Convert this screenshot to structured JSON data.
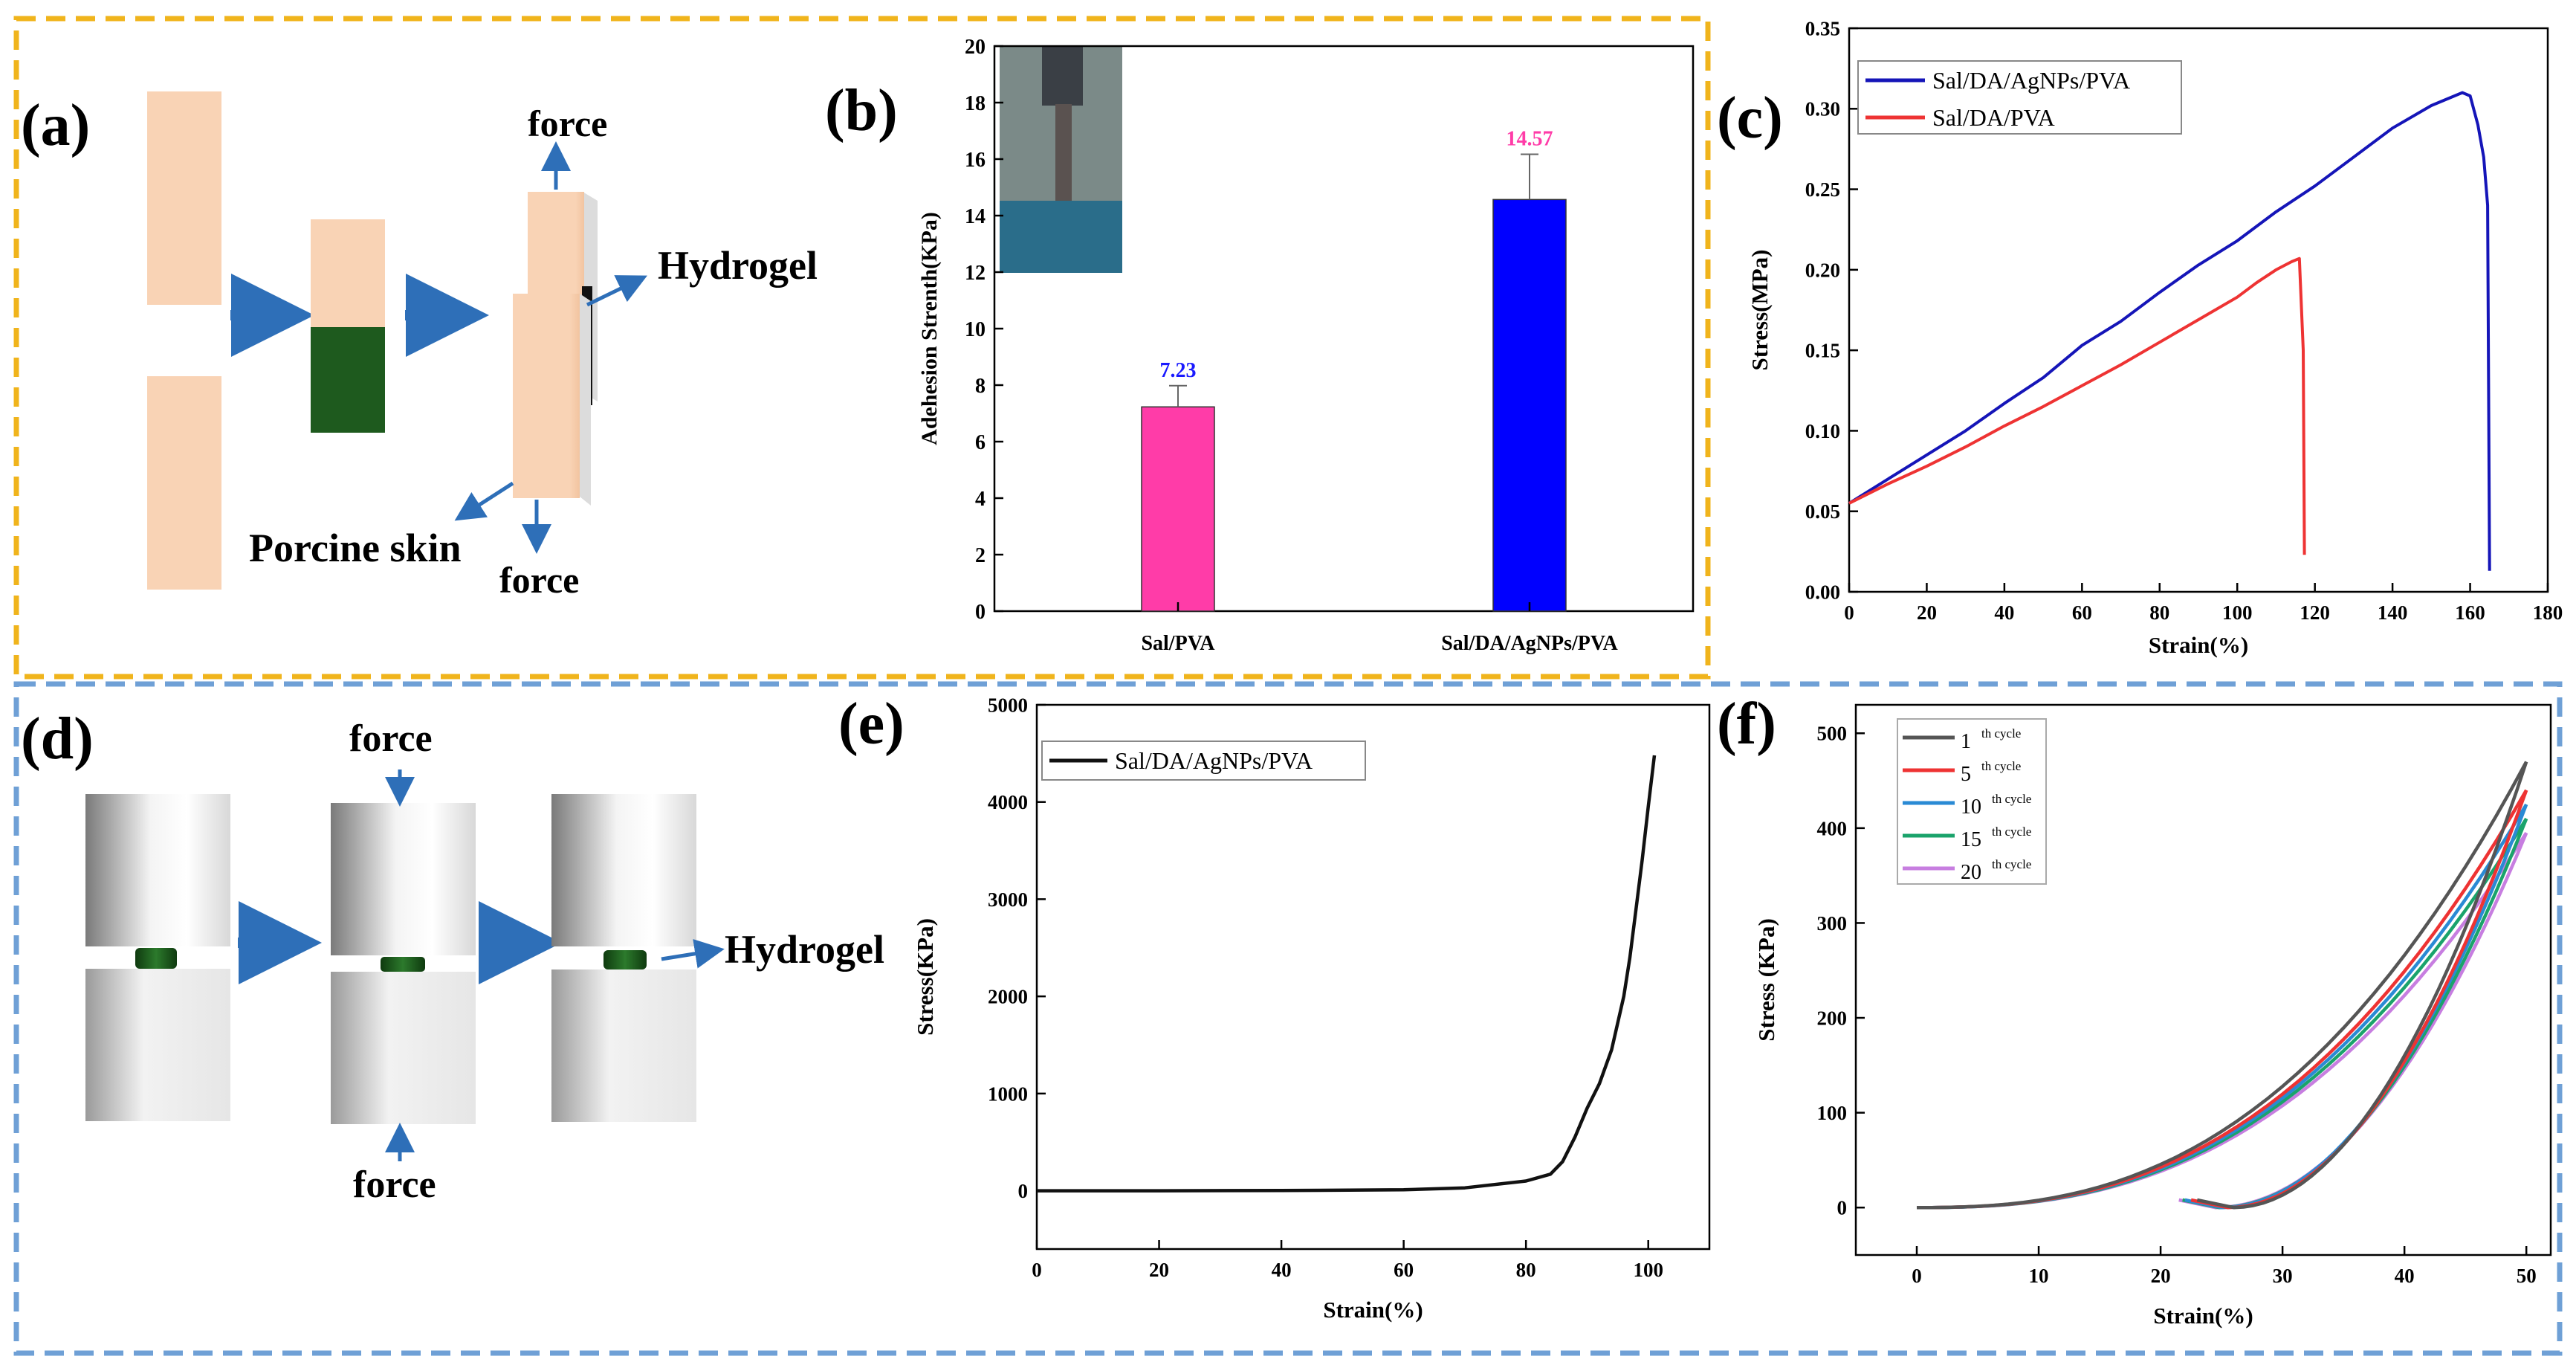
{
  "panels": {
    "a": {
      "label": "(a)",
      "force_top": "force",
      "force_bottom": "force",
      "hydrogel": "Hydrogel",
      "skin": "Porcine skin",
      "colors": {
        "skin": "#f9d3b5",
        "gel": "#1e5a1e",
        "arrow": "#2e6fb8"
      }
    },
    "d": {
      "label": "(d)",
      "force_top": "force",
      "force_bottom": "force",
      "hydrogel": "Hydrogel"
    },
    "b": {
      "label": "(b)"
    },
    "c": {
      "label": "(c)"
    },
    "e": {
      "label": "(e)"
    },
    "f": {
      "label": "(f)"
    }
  },
  "frames": {
    "top": "#f0b41c",
    "bottom": "#6fa0d6"
  },
  "chart_data": [
    {
      "id": "b",
      "type": "bar",
      "title": "",
      "xlabel": "",
      "ylabel": "Adehesion Strenth(KPa)",
      "ylim": [
        0,
        20
      ],
      "yticks": [
        "0",
        "2",
        "4",
        "6",
        "8",
        "10",
        "12",
        "14",
        "16",
        "18",
        "20"
      ],
      "categories": [
        "Sal/PVA",
        "Sal/DA/AgNPs/PVA"
      ],
      "values": [
        7.23,
        14.57
      ],
      "errors": [
        0.75,
        1.6
      ],
      "value_labels": [
        "7.23",
        "14.57"
      ],
      "colors": [
        "#ff3ca8",
        "#0000ff"
      ],
      "label_colors": [
        "#1a1aff",
        "#ff3ca8"
      ]
    },
    {
      "id": "c",
      "type": "line",
      "xlabel": "Strain(%)",
      "ylabel": "Stress(MPa)",
      "xlim": [
        0,
        180
      ],
      "ylim": [
        0,
        0.35
      ],
      "xticks": [
        "0",
        "20",
        "40",
        "60",
        "80",
        "100",
        "120",
        "140",
        "160",
        "180"
      ],
      "yticks": [
        "0.00",
        "0.05",
        "0.10",
        "0.15",
        "0.20",
        "0.25",
        "0.30",
        "0.35"
      ],
      "legend_position": "top-left",
      "series": [
        {
          "name": "Sal/DA/AgNPs/PVA",
          "color": "#1515b8",
          "x": [
            0,
            10,
            20,
            30,
            40,
            50,
            60,
            70,
            80,
            90,
            100,
            110,
            120,
            130,
            140,
            150,
            155,
            158,
            160,
            162,
            163.5,
            164.5,
            165
          ],
          "y": [
            0.055,
            0.07,
            0.085,
            0.1,
            0.117,
            0.133,
            0.153,
            0.168,
            0.186,
            0.203,
            0.218,
            0.236,
            0.252,
            0.27,
            0.288,
            0.302,
            0.307,
            0.31,
            0.308,
            0.29,
            0.27,
            0.24,
            0.013
          ]
        },
        {
          "name": "Sal/DA/PVA",
          "color": "#ee3333",
          "x": [
            0,
            10,
            20,
            30,
            40,
            50,
            60,
            70,
            80,
            90,
            100,
            105,
            110,
            114,
            116,
            117,
            117.3
          ],
          "y": [
            0.055,
            0.067,
            0.078,
            0.09,
            0.103,
            0.115,
            0.128,
            0.141,
            0.155,
            0.169,
            0.183,
            0.192,
            0.2,
            0.205,
            0.207,
            0.15,
            0.023
          ]
        }
      ]
    },
    {
      "id": "e",
      "type": "line",
      "xlabel": "Strain(%)",
      "ylabel": "Stress(KPa)",
      "xlim": [
        0,
        110
      ],
      "ylim": [
        -600,
        5000
      ],
      "xticks": [
        "0",
        "20",
        "40",
        "60",
        "80",
        "100"
      ],
      "yticks": [
        "0",
        "1000",
        "2000",
        "3000",
        "4000",
        "5000"
      ],
      "legend_position": "top-left",
      "series": [
        {
          "name": "Sal/DA/AgNPs/PVA",
          "color": "#111111",
          "x": [
            0,
            20,
            40,
            60,
            70,
            80,
            84,
            86,
            88,
            90,
            92,
            94,
            96,
            97,
            98,
            99,
            100,
            101
          ],
          "y": [
            0,
            0,
            2,
            10,
            30,
            100,
            170,
            300,
            550,
            850,
            1100,
            1450,
            2000,
            2400,
            2900,
            3400,
            3950,
            4480
          ]
        }
      ]
    },
    {
      "id": "f",
      "type": "line",
      "xlabel": "Strain(%)",
      "ylabel": "Stress (KPa)",
      "xlim": [
        -5,
        52
      ],
      "ylim": [
        -50,
        530
      ],
      "xticks": [
        "0",
        "10",
        "20",
        "30",
        "40",
        "50"
      ],
      "yticks": [
        "0",
        "100",
        "200",
        "300",
        "400",
        "500"
      ],
      "legend_position": "top-left",
      "series": [
        {
          "name": "1",
          "sup": "th cycle",
          "color": "#555555",
          "peak": 470,
          "start": 26
        },
        {
          "name": "5",
          "sup": "th cycle",
          "color": "#ee3333",
          "peak": 440,
          "start": 25.5
        },
        {
          "name": "10",
          "sup": "th cycle",
          "color": "#2a8ad4",
          "peak": 425,
          "start": 25
        },
        {
          "name": "15",
          "sup": "th cycle",
          "color": "#1aa36b",
          "peak": 410,
          "start": 24.8
        },
        {
          "name": "20",
          "sup": "th cycle",
          "color": "#c77ee0",
          "peak": 395,
          "start": 24.5
        }
      ]
    }
  ]
}
